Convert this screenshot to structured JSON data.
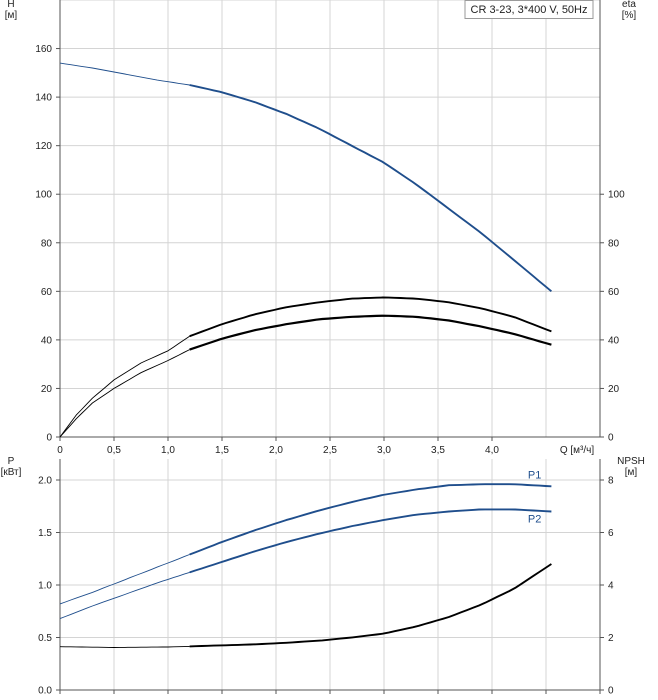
{
  "chart_data": [
    {
      "type": "line",
      "legend": "CR 3-23, 3*400 V, 50Hz",
      "xlabel": "Q [м³/ч]",
      "x_ticks": [
        "0",
        "0,5",
        "1,0",
        "1,5",
        "2,0",
        "2,5",
        "3,0",
        "3,5",
        "4,0"
      ],
      "xlim": [
        0,
        5.0
      ],
      "left_axis": {
        "label_top": "H",
        "label_unit": "[м]",
        "ylim": [
          0,
          180
        ],
        "ticks": [
          "0",
          "20",
          "40",
          "60",
          "80",
          "100",
          "120",
          "140",
          "160"
        ]
      },
      "right_axis": {
        "label_top": "eta",
        "label_unit": "[%]",
        "ylim": [
          0,
          180
        ],
        "ticks": [
          "0",
          "20",
          "40",
          "60",
          "80",
          "100"
        ]
      },
      "grid": true,
      "series": [
        {
          "axis": "left",
          "color": "#1f4e8c",
          "op_start": 1.2,
          "x": [
            0,
            0.3,
            0.6,
            0.9,
            1.2,
            1.5,
            1.8,
            2.1,
            2.4,
            2.7,
            3.0,
            3.3,
            3.6,
            3.9,
            4.2,
            4.55
          ],
          "y": [
            154,
            152,
            149.5,
            147,
            145,
            142,
            138,
            133,
            127,
            120,
            113,
            104,
            94,
            84,
            73,
            60
          ]
        },
        {
          "axis": "right",
          "color": "#000000",
          "op_start": 1.2,
          "x": [
            0,
            0.15,
            0.3,
            0.5,
            0.75,
            1.0,
            1.2,
            1.5,
            1.8,
            2.1,
            2.4,
            2.7,
            3.0,
            3.3,
            3.6,
            3.9,
            4.2,
            4.55
          ],
          "y": [
            0,
            9,
            16,
            23.5,
            30.5,
            35.5,
            41.5,
            46.5,
            50.5,
            53.5,
            55.5,
            57,
            57.5,
            57,
            55.5,
            53,
            49.5,
            43.5
          ]
        },
        {
          "axis": "right",
          "color": "#000000",
          "op_start": 1.2,
          "x": [
            0,
            0.15,
            0.3,
            0.5,
            0.75,
            1.0,
            1.2,
            1.5,
            1.8,
            2.1,
            2.4,
            2.7,
            3.0,
            3.3,
            3.6,
            3.9,
            4.2,
            4.55
          ],
          "y": [
            0,
            7.5,
            14,
            20,
            26.5,
            31.5,
            36,
            40.5,
            44,
            46.5,
            48.5,
            49.5,
            50,
            49.5,
            48,
            45.5,
            42.5,
            38
          ]
        }
      ]
    },
    {
      "type": "line",
      "xlim": [
        0,
        5.0
      ],
      "left_axis": {
        "label_top": "P",
        "label_unit": "[кВт]",
        "ylim": [
          0,
          2.2
        ],
        "ticks": [
          "0.0",
          "0.5",
          "1.0",
          "1.5",
          "2.0"
        ]
      },
      "right_axis": {
        "label_top": "NPSH",
        "label_unit": "[м]",
        "ylim": [
          0,
          8.8
        ],
        "ticks": [
          "0",
          "2",
          "4",
          "6",
          "8"
        ]
      },
      "grid": true,
      "series": [
        {
          "name": "P1",
          "axis": "left",
          "color": "#1f4e8c",
          "op_start": 1.2,
          "x": [
            0,
            0.3,
            0.6,
            0.9,
            1.2,
            1.5,
            1.8,
            2.1,
            2.4,
            2.7,
            3.0,
            3.3,
            3.6,
            3.9,
            4.2,
            4.55
          ],
          "y": [
            0.82,
            0.93,
            1.05,
            1.17,
            1.29,
            1.41,
            1.52,
            1.62,
            1.71,
            1.79,
            1.86,
            1.91,
            1.95,
            1.96,
            1.96,
            1.94
          ]
        },
        {
          "name": "P2",
          "axis": "left",
          "color": "#1f4e8c",
          "op_start": 1.2,
          "x": [
            0,
            0.3,
            0.6,
            0.9,
            1.2,
            1.5,
            1.8,
            2.1,
            2.4,
            2.7,
            3.0,
            3.3,
            3.6,
            3.9,
            4.2,
            4.55
          ],
          "y": [
            0.68,
            0.8,
            0.91,
            1.02,
            1.12,
            1.22,
            1.32,
            1.41,
            1.49,
            1.56,
            1.62,
            1.67,
            1.7,
            1.72,
            1.72,
            1.7
          ]
        },
        {
          "axis": "right",
          "color": "#000000",
          "op_start": 1.2,
          "x": [
            0,
            0.5,
            1.0,
            1.2,
            1.5,
            1.8,
            2.1,
            2.4,
            2.7,
            3.0,
            3.3,
            3.6,
            3.9,
            4.2,
            4.55
          ],
          "y": [
            1.65,
            1.62,
            1.64,
            1.66,
            1.7,
            1.74,
            1.8,
            1.88,
            2.0,
            2.15,
            2.42,
            2.78,
            3.25,
            3.85,
            4.8
          ]
        }
      ]
    }
  ]
}
